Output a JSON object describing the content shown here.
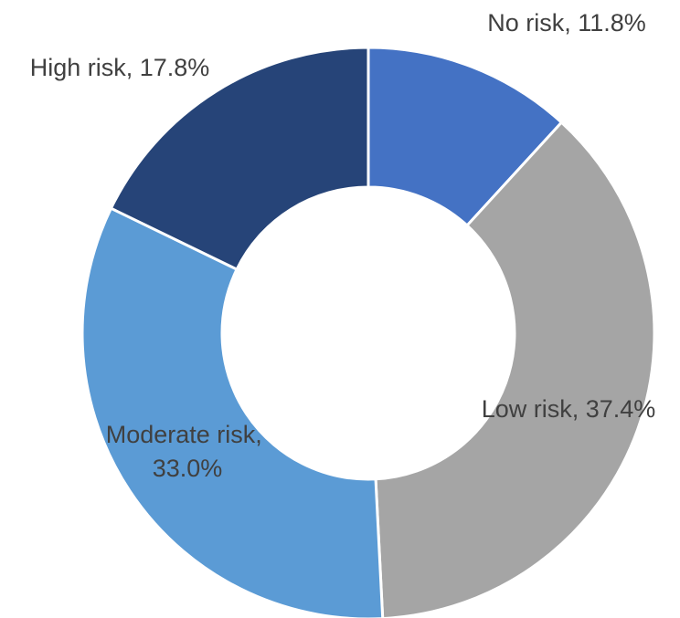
{
  "chart_data": {
    "type": "pie",
    "variant": "donut",
    "title": "",
    "legend": "none",
    "slices": [
      {
        "label": "No risk",
        "value": 11.8,
        "display": "No risk, 11.8%",
        "color": "#4472C4"
      },
      {
        "label": "Low risk",
        "value": 37.4,
        "display": "Low risk, 37.4%",
        "color": "#A5A5A5"
      },
      {
        "label": "Moderate risk",
        "value": 33.0,
        "display": [
          "Moderate risk,",
          "33.0%"
        ],
        "color": "#5B9BD5"
      },
      {
        "label": "High risk",
        "value": 17.8,
        "display": "High risk, 17.8%",
        "color": "#264478"
      }
    ]
  }
}
